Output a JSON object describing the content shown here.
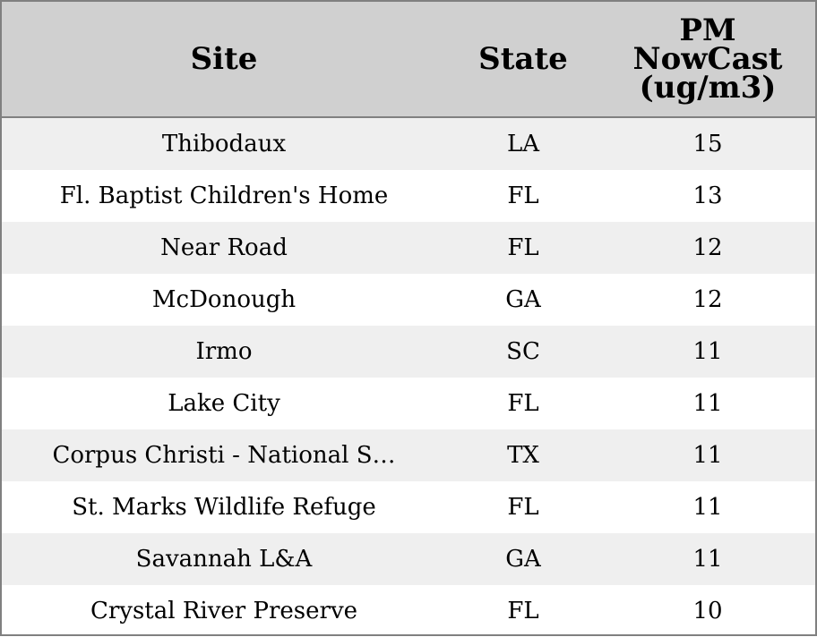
{
  "chart_data": {
    "type": "table",
    "columns": [
      "Site",
      "State",
      "PM\nNowCast\n(ug/m3)"
    ],
    "rows": [
      {
        "site": "Thibodaux",
        "state": "LA",
        "pm": 15
      },
      {
        "site": "Fl. Baptist Children's Home",
        "state": "FL",
        "pm": 13
      },
      {
        "site": "Near Road",
        "state": "FL",
        "pm": 12
      },
      {
        "site": "McDonough",
        "state": "GA",
        "pm": 12
      },
      {
        "site": "Irmo",
        "state": "SC",
        "pm": 11
      },
      {
        "site": "Lake City",
        "state": "FL",
        "pm": 11
      },
      {
        "site": "Corpus Christi - National S…",
        "state": "TX",
        "pm": 11
      },
      {
        "site": "St. Marks Wildlife Refuge",
        "state": "FL",
        "pm": 11
      },
      {
        "site": "Savannah L&A",
        "state": "GA",
        "pm": 11
      },
      {
        "site": "Crystal River Preserve",
        "state": "FL",
        "pm": 10
      }
    ],
    "colors": {
      "header_bg": "#d0d0d0",
      "alt_row_bg": "#efefef",
      "row_bg": "#ffffff",
      "border": "#808080"
    }
  }
}
